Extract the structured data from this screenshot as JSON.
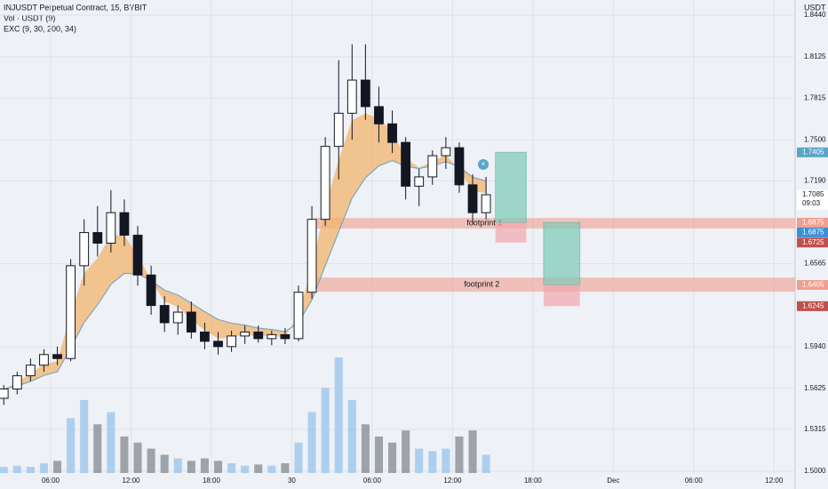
{
  "chart_data": {
    "type": "candlestick",
    "title": "INJUSDT Perpetual Contract, 15, BYBIT",
    "indicators": [
      "Vol · USDT (9)",
      "EXC (9, 30, 200, 34)"
    ],
    "y_unit": "USDT",
    "xlim": [
      2.22,
      61.57
    ],
    "xticks": [
      {
        "value": 6,
        "label": "06:00"
      },
      {
        "value": 12,
        "label": "12:00"
      },
      {
        "value": 18,
        "label": "18:00"
      },
      {
        "value": 24,
        "label": "30"
      },
      {
        "value": 30,
        "label": "06:00"
      },
      {
        "value": 36,
        "label": "12:00"
      },
      {
        "value": 42,
        "label": "18:00"
      },
      {
        "value": 48,
        "label": "Dec"
      },
      {
        "value": 54,
        "label": "06:00"
      },
      {
        "value": 60,
        "label": "12:00"
      }
    ],
    "ylim": [
      1.4866,
      1.8554
    ],
    "yticks": [
      {
        "value": 1.5,
        "label": "1.5000"
      },
      1.5315,
      1.5625,
      {
        "value": 1.594,
        "label": "1.5940"
      },
      1.6565,
      {
        "value": 1.719,
        "label": "1.7190"
      },
      {
        "value": 1.75,
        "label": "1.7500"
      },
      1.7815,
      1.8125,
      {
        "value": 1.844,
        "label": "1.8440"
      }
    ],
    "grid": true,
    "x": [
      2.5,
      3.5,
      4.5,
      5.5,
      6.5,
      7.5,
      8.5,
      9.5,
      10.5,
      11.5,
      12.5,
      13.5,
      14.5,
      15.5,
      16.5,
      17.5,
      18.5,
      19.5,
      20.5,
      21.5,
      22.5,
      23.5,
      24.5,
      25.5,
      26.5,
      27.5,
      28.5,
      29.5,
      30.5,
      31.5,
      32.5,
      33.5,
      34.5,
      35.5,
      36.5,
      37.5,
      38.5
    ],
    "open": [
      1.555,
      1.562,
      1.572,
      1.58,
      1.588,
      1.585,
      1.655,
      1.68,
      1.672,
      1.695,
      1.678,
      1.648,
      1.625,
      1.612,
      1.62,
      1.605,
      1.598,
      1.594,
      1.602,
      1.605,
      1.6,
      1.603,
      1.6,
      1.635,
      1.69,
      1.745,
      1.77,
      1.795,
      1.775,
      1.762,
      1.748,
      1.715,
      1.722,
      1.738,
      1.744,
      1.716,
      1.695
    ],
    "high": [
      1.565,
      1.575,
      1.585,
      1.592,
      1.594,
      1.66,
      1.69,
      1.7,
      1.712,
      1.705,
      1.685,
      1.655,
      1.632,
      1.625,
      1.628,
      1.612,
      1.605,
      1.606,
      1.61,
      1.61,
      1.606,
      1.608,
      1.64,
      1.7,
      1.752,
      1.81,
      1.822,
      1.822,
      1.79,
      1.772,
      1.752,
      1.728,
      1.742,
      1.752,
      1.748,
      1.724,
      1.722
    ],
    "low": [
      1.55,
      1.558,
      1.568,
      1.575,
      1.58,
      1.583,
      1.64,
      1.662,
      1.665,
      1.67,
      1.64,
      1.618,
      1.605,
      1.603,
      1.6,
      1.592,
      1.588,
      1.59,
      1.596,
      1.597,
      1.595,
      1.596,
      1.598,
      1.63,
      1.685,
      1.72,
      1.75,
      1.765,
      1.748,
      1.74,
      1.705,
      1.7,
      1.716,
      1.728,
      1.71,
      1.686,
      1.69
    ],
    "close": [
      1.562,
      1.572,
      1.58,
      1.588,
      1.585,
      1.655,
      1.68,
      1.672,
      1.695,
      1.678,
      1.648,
      1.625,
      1.612,
      1.62,
      1.605,
      1.598,
      1.594,
      1.602,
      1.605,
      1.6,
      1.603,
      1.6,
      1.635,
      1.69,
      1.745,
      1.77,
      1.795,
      1.775,
      1.762,
      1.748,
      1.715,
      1.722,
      1.738,
      1.744,
      1.716,
      1.695,
      1.7085
    ],
    "volume": [
      5,
      6,
      5,
      8,
      10,
      45,
      60,
      40,
      50,
      30,
      25,
      20,
      15,
      12,
      10,
      12,
      10,
      8,
      6,
      7,
      6,
      8,
      25,
      50,
      70,
      95,
      60,
      40,
      30,
      25,
      35,
      20,
      18,
      20,
      30,
      35,
      15
    ],
    "candle_color": "#131722",
    "zones": [
      {
        "label": "footprint 1",
        "top": 1.691,
        "bottom": 1.683,
        "start": 25.8,
        "color": "#f0a090"
      },
      {
        "label": "footprint 2",
        "top": 1.6461,
        "bottom": 1.6354,
        "start": 25.4,
        "color": "#f0a090"
      }
    ],
    "positions": [
      {
        "start": 39.2,
        "end": 41.5,
        "target": 1.7405,
        "entry": 1.6875,
        "stop": 1.6725
      },
      {
        "start": 42.8,
        "end": 45.5,
        "target": 1.6875,
        "entry": 1.6405,
        "stop": 1.6245
      }
    ],
    "price_tags": [
      {
        "value": 1.7405,
        "color": "#5aa5c8"
      },
      {
        "value": 1.7085,
        "color": "#ffffff",
        "time": "09:03"
      },
      {
        "value": 1.6875,
        "color": "#f0a090"
      },
      {
        "value": 1.6875,
        "color": "#3d8fd6"
      },
      {
        "value": 1.6725,
        "color": "#c0504d"
      },
      {
        "value": 1.6405,
        "color": "#f0a090"
      },
      {
        "value": 1.6245,
        "color": "#c0504d"
      }
    ]
  }
}
